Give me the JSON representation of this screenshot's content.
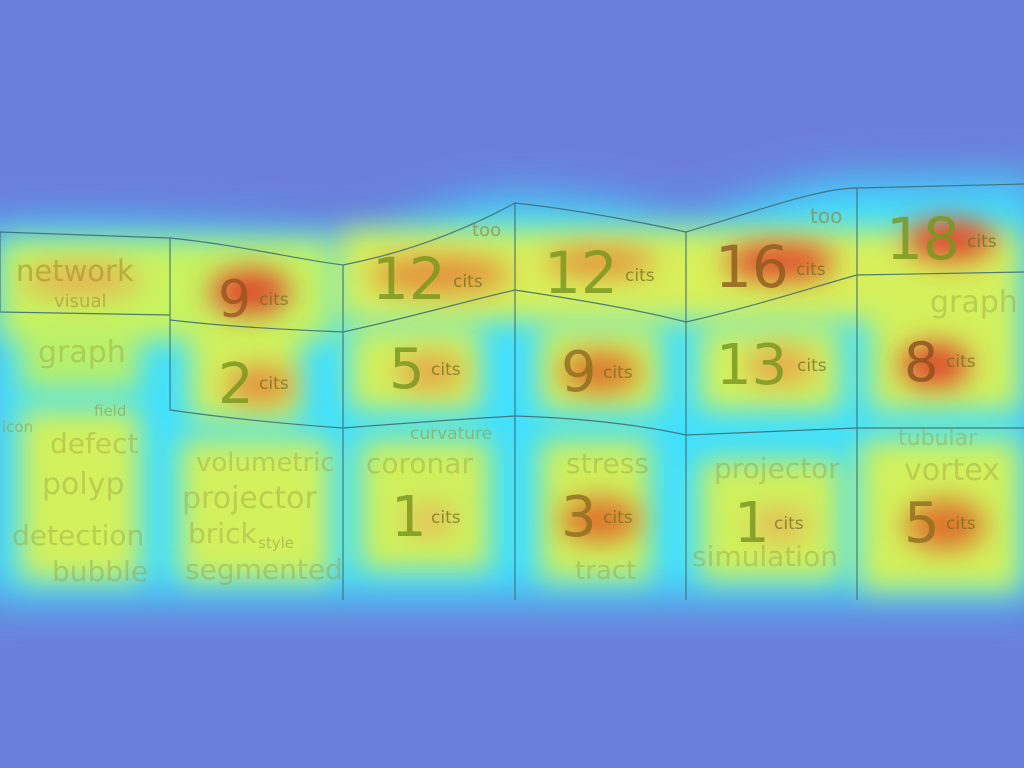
{
  "colors": {
    "background": "#6a7fdc",
    "heat_low": "#3fe0ff",
    "heat_mid": "#d8f05a",
    "heat_high": "#e0452c",
    "grid_line": "#3a6a74",
    "number_text": "#7a961e"
  },
  "citation_unit": "cits",
  "cells": [
    {
      "count": "9"
    },
    {
      "count": "12"
    },
    {
      "count": "12"
    },
    {
      "count": "16"
    },
    {
      "count": "18"
    },
    {
      "count": "2"
    },
    {
      "count": "5"
    },
    {
      "count": "9"
    },
    {
      "count": "13"
    },
    {
      "count": "8"
    },
    {
      "count": "1"
    },
    {
      "count": "3"
    },
    {
      "count": "1"
    },
    {
      "count": "5"
    }
  ],
  "keywords": {
    "network": "network",
    "visual": "visual",
    "graph": "graph",
    "defect": "defect",
    "polyp": "polyp",
    "detection": "detection",
    "bubble": "bubble",
    "volumetric": "volumetric",
    "projector1": "projector",
    "brick": "brick",
    "style": "style",
    "segmented": "segmented",
    "coronar": "coronar",
    "curvature": "curvature",
    "stress": "stress",
    "tract": "tract",
    "projector2": "projector",
    "simulation": "simulation",
    "vortex": "vortex",
    "tubular": "tubular",
    "graph2": "graph",
    "too1": "too",
    "too2": "too",
    "icon": "icon",
    "field": "field"
  }
}
